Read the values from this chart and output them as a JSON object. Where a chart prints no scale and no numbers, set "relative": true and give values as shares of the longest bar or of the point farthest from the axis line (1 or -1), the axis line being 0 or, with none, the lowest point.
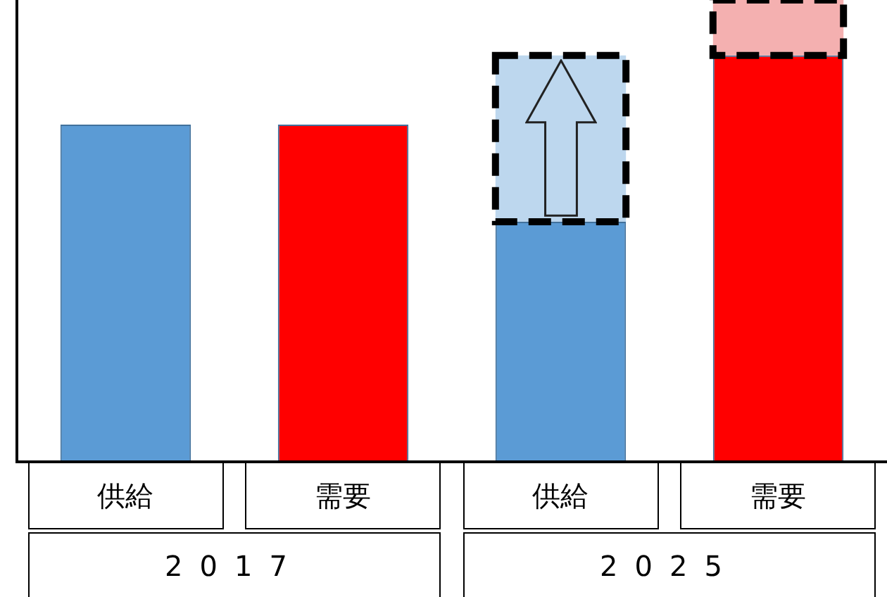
{
  "chart_data": {
    "type": "bar",
    "relative": true,
    "stacked": true,
    "categories": [
      "供給",
      "需要",
      "供給",
      "需要"
    ],
    "annotations": [
      "2017",
      "2025"
    ],
    "series": [
      {
        "colors": [
          "#5b9bd5",
          "#ff0000",
          "#5b9bd5",
          "#ff0000"
        ],
        "values": [
          0.73,
          0.73,
          0.52,
          0.88
        ]
      },
      {
        "colors": [
          "#bdd7ee",
          "#f4b0b0",
          "#bdd7ee",
          "#f4b0b0"
        ],
        "line_style": "dashed",
        "values": [
          null,
          null,
          0.36,
          0.12
        ]
      }
    ]
  }
}
